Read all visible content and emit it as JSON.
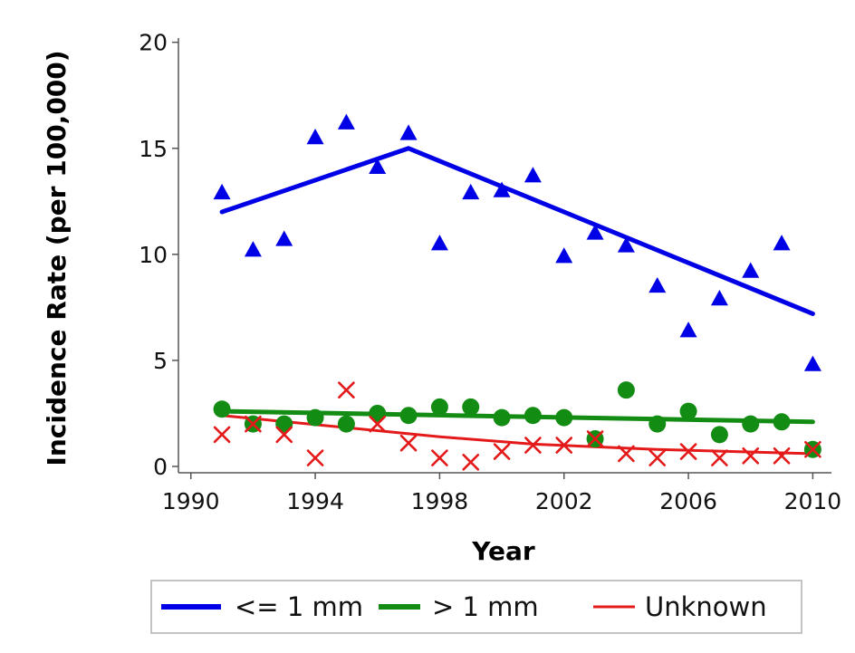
{
  "chart_data": {
    "type": "scatter",
    "title": "",
    "xlabel": "Year",
    "ylabel": "Incidence Rate (per 100,000)",
    "xlim": [
      1989.6,
      2010.6
    ],
    "ylim": [
      -0.3,
      20.2
    ],
    "xticks": [
      1990,
      1994,
      1998,
      2002,
      2006,
      2010
    ],
    "yticks": [
      0,
      5,
      10,
      15,
      20
    ],
    "grid": false,
    "legend_position": "bottom",
    "series": [
      {
        "name": "<= 1 mm",
        "color": "#0000e6",
        "marker": "triangle",
        "points": [
          [
            1991,
            12.9
          ],
          [
            1992,
            10.2
          ],
          [
            1993,
            10.7
          ],
          [
            1994,
            15.5
          ],
          [
            1995,
            16.2
          ],
          [
            1996,
            14.1
          ],
          [
            1997,
            15.7
          ],
          [
            1998,
            10.5
          ],
          [
            1999,
            12.9
          ],
          [
            2000,
            13.0
          ],
          [
            2001,
            13.7
          ],
          [
            2002,
            9.9
          ],
          [
            2003,
            11.0
          ],
          [
            2004,
            10.4
          ],
          [
            2005,
            8.5
          ],
          [
            2006,
            6.4
          ],
          [
            2007,
            7.9
          ],
          [
            2008,
            9.2
          ],
          [
            2009,
            10.5
          ],
          [
            2010,
            4.8
          ]
        ],
        "trend": [
          [
            1991,
            12.0
          ],
          [
            1997,
            15.0
          ],
          [
            2010,
            7.2
          ]
        ]
      },
      {
        "name": "> 1 mm",
        "color": "#138c13",
        "marker": "circle",
        "points": [
          [
            1991,
            2.7
          ],
          [
            1992,
            2.0
          ],
          [
            1993,
            2.0
          ],
          [
            1994,
            2.3
          ],
          [
            1995,
            2.0
          ],
          [
            1996,
            2.5
          ],
          [
            1997,
            2.4
          ],
          [
            1998,
            2.8
          ],
          [
            1999,
            2.8
          ],
          [
            2000,
            2.3
          ],
          [
            2001,
            2.4
          ],
          [
            2002,
            2.3
          ],
          [
            2003,
            1.3
          ],
          [
            2004,
            3.6
          ],
          [
            2005,
            2.0
          ],
          [
            2006,
            2.6
          ],
          [
            2007,
            1.5
          ],
          [
            2008,
            2.0
          ],
          [
            2009,
            2.1
          ],
          [
            2010,
            0.8
          ]
        ],
        "trend": [
          [
            1991,
            2.6
          ],
          [
            2010,
            2.1
          ]
        ]
      },
      {
        "name": "Unknown",
        "color": "#e41a1a",
        "marker": "x",
        "points": [
          [
            1991,
            1.5
          ],
          [
            1992,
            2.0
          ],
          [
            1993,
            1.5
          ],
          [
            1994,
            0.4
          ],
          [
            1995,
            3.6
          ],
          [
            1996,
            2.0
          ],
          [
            1997,
            1.1
          ],
          [
            1998,
            0.4
          ],
          [
            1999,
            0.2
          ],
          [
            2000,
            0.7
          ],
          [
            2001,
            1.0
          ],
          [
            2002,
            1.0
          ],
          [
            2003,
            1.3
          ],
          [
            2004,
            0.6
          ],
          [
            2005,
            0.4
          ],
          [
            2006,
            0.7
          ],
          [
            2007,
            0.4
          ],
          [
            2008,
            0.5
          ],
          [
            2009,
            0.5
          ],
          [
            2010,
            0.8
          ]
        ],
        "trend": [
          [
            1991,
            2.4
          ],
          [
            1998,
            1.4
          ],
          [
            2001,
            1.05
          ],
          [
            2005,
            0.8
          ],
          [
            2010,
            0.6
          ]
        ]
      }
    ]
  }
}
